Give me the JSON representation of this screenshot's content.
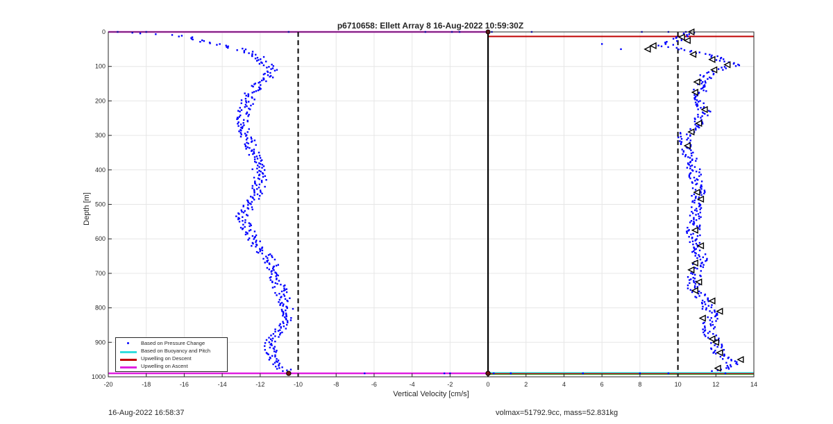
{
  "chart_data": {
    "type": "scatter",
    "title": "p6710658: Ellett Array 8 16-Aug-2022 10:59:30Z",
    "xlabel": "Vertical Velocity [cm/s]",
    "ylabel": "Depth [m]",
    "xlim": [
      -20,
      14
    ],
    "ylim": [
      0,
      1000
    ],
    "y_reversed": true,
    "grid": true,
    "xticks": [
      "-20",
      "-18",
      "-16",
      "-14",
      "-12",
      "-10",
      "-8",
      "-6",
      "-4",
      "-2",
      "0",
      "2",
      "4",
      "6",
      "8",
      "10",
      "12",
      "14"
    ],
    "yticks": [
      "0",
      "100",
      "200",
      "300",
      "400",
      "500",
      "600",
      "700",
      "800",
      "900",
      "1000"
    ],
    "legend": {
      "placement": "bottom-left",
      "entries": [
        {
          "label": "Based on Pressure Change",
          "color": "#0000ff"
        },
        {
          "label": "Based on Buoyancy and Pitch",
          "color": "#33dddd"
        },
        {
          "label": "Upwelling on Descent",
          "color": "#c00000"
        },
        {
          "label": "Upwelling on Ascent",
          "color": "#e020e0"
        }
      ]
    },
    "reference_lines": {
      "dashed_x": [
        -10,
        10
      ],
      "solid_x": [
        0
      ],
      "descent_depths": [
        13,
        990
      ],
      "ascent_depths": [
        0,
        990
      ]
    },
    "series": [
      {
        "name": "Based on Pressure Change",
        "profile_left": [
          {
            "depth": 0,
            "x": -19.5
          },
          {
            "depth": 10,
            "x": -16.2
          },
          {
            "depth": 25,
            "x": -15.2
          },
          {
            "depth": 40,
            "x": -13.8
          },
          {
            "depth": 55,
            "x": -12.8
          },
          {
            "depth": 70,
            "x": -12.2
          },
          {
            "depth": 90,
            "x": -11.8
          },
          {
            "depth": 110,
            "x": -11.3
          },
          {
            "depth": 130,
            "x": -11.6
          },
          {
            "depth": 150,
            "x": -12.1
          },
          {
            "depth": 180,
            "x": -12.5
          },
          {
            "depth": 220,
            "x": -12.8
          },
          {
            "depth": 260,
            "x": -12.9
          },
          {
            "depth": 300,
            "x": -12.7
          },
          {
            "depth": 340,
            "x": -12.4
          },
          {
            "depth": 380,
            "x": -12.2
          },
          {
            "depth": 420,
            "x": -12.0
          },
          {
            "depth": 460,
            "x": -12.1
          },
          {
            "depth": 500,
            "x": -12.5
          },
          {
            "depth": 540,
            "x": -13.0
          },
          {
            "depth": 580,
            "x": -12.6
          },
          {
            "depth": 620,
            "x": -12.2
          },
          {
            "depth": 660,
            "x": -11.5
          },
          {
            "depth": 700,
            "x": -11.2
          },
          {
            "depth": 740,
            "x": -11.0
          },
          {
            "depth": 780,
            "x": -10.7
          },
          {
            "depth": 820,
            "x": -10.5
          },
          {
            "depth": 860,
            "x": -10.9
          },
          {
            "depth": 900,
            "x": -11.4
          },
          {
            "depth": 940,
            "x": -11.5
          },
          {
            "depth": 970,
            "x": -10.9
          },
          {
            "depth": 985,
            "x": -10.6
          }
        ],
        "profile_right": [
          {
            "depth": 0,
            "x": 10.6
          },
          {
            "depth": 20,
            "x": 10.1
          },
          {
            "depth": 40,
            "x": 9.3
          },
          {
            "depth": 60,
            "x": 11.2
          },
          {
            "depth": 80,
            "x": 12.3
          },
          {
            "depth": 95,
            "x": 13.0
          },
          {
            "depth": 120,
            "x": 11.6
          },
          {
            "depth": 150,
            "x": 11.2
          },
          {
            "depth": 190,
            "x": 11.1
          },
          {
            "depth": 230,
            "x": 11.4
          },
          {
            "depth": 270,
            "x": 11.0
          },
          {
            "depth": 300,
            "x": 10.3
          },
          {
            "depth": 340,
            "x": 10.5
          },
          {
            "depth": 380,
            "x": 10.8
          },
          {
            "depth": 420,
            "x": 10.9
          },
          {
            "depth": 460,
            "x": 11.1
          },
          {
            "depth": 500,
            "x": 11.0
          },
          {
            "depth": 540,
            "x": 10.9
          },
          {
            "depth": 580,
            "x": 10.8
          },
          {
            "depth": 620,
            "x": 11.0
          },
          {
            "depth": 660,
            "x": 11.2
          },
          {
            "depth": 700,
            "x": 10.9
          },
          {
            "depth": 740,
            "x": 10.8
          },
          {
            "depth": 780,
            "x": 11.4
          },
          {
            "depth": 820,
            "x": 11.8
          },
          {
            "depth": 860,
            "x": 11.6
          },
          {
            "depth": 900,
            "x": 11.9
          },
          {
            "depth": 940,
            "x": 12.3
          },
          {
            "depth": 965,
            "x": 13.0
          },
          {
            "depth": 985,
            "x": 12.0
          }
        ],
        "surface_outliers": [
          {
            "depth": 0,
            "x": -18
          },
          {
            "depth": 0,
            "x": -10.5
          },
          {
            "depth": 0,
            "x": -3.3
          },
          {
            "depth": 0,
            "x": -1.9
          },
          {
            "depth": 0,
            "x": -1.5
          },
          {
            "depth": 0,
            "x": 0.2
          },
          {
            "depth": 0,
            "x": 2.3
          },
          {
            "depth": 0,
            "x": 8.1
          },
          {
            "depth": 0,
            "x": 9.5
          },
          {
            "depth": 35,
            "x": 6.0
          },
          {
            "depth": 50,
            "x": 7.0
          }
        ],
        "bottom_outliers": [
          {
            "depth": 990,
            "x": -6.5
          },
          {
            "depth": 990,
            "x": -2.3
          },
          {
            "depth": 990,
            "x": -2.0
          },
          {
            "depth": 990,
            "x": 0.3
          },
          {
            "depth": 990,
            "x": 1.2
          },
          {
            "depth": 990,
            "x": 5.0
          },
          {
            "depth": 990,
            "x": 8.0
          },
          {
            "depth": 990,
            "x": 9.5
          },
          {
            "depth": 990,
            "x": 12.5
          }
        ]
      },
      {
        "name": "Based on Buoyancy and Pitch",
        "triangles_right": [
          {
            "depth": 0,
            "x": 10.7
          },
          {
            "depth": 15,
            "x": 10.2
          },
          {
            "depth": 25,
            "x": 10.5
          },
          {
            "depth": 40,
            "x": 8.7
          },
          {
            "depth": 50,
            "x": 8.4
          },
          {
            "depth": 65,
            "x": 10.8
          },
          {
            "depth": 80,
            "x": 11.8
          },
          {
            "depth": 95,
            "x": 12.6
          },
          {
            "depth": 110,
            "x": 11.9
          },
          {
            "depth": 145,
            "x": 11.0
          },
          {
            "depth": 175,
            "x": 10.9
          },
          {
            "depth": 225,
            "x": 11.4
          },
          {
            "depth": 265,
            "x": 11.1
          },
          {
            "depth": 290,
            "x": 10.7
          },
          {
            "depth": 330,
            "x": 10.5
          },
          {
            "depth": 465,
            "x": 11.0
          },
          {
            "depth": 485,
            "x": 11.2
          },
          {
            "depth": 575,
            "x": 10.9
          },
          {
            "depth": 620,
            "x": 11.2
          },
          {
            "depth": 670,
            "x": 10.9
          },
          {
            "depth": 690,
            "x": 10.7
          },
          {
            "depth": 725,
            "x": 11.1
          },
          {
            "depth": 750,
            "x": 10.9
          },
          {
            "depth": 780,
            "x": 11.8
          },
          {
            "depth": 810,
            "x": 12.2
          },
          {
            "depth": 830,
            "x": 11.3
          },
          {
            "depth": 890,
            "x": 11.8
          },
          {
            "depth": 900,
            "x": 12.0
          },
          {
            "depth": 930,
            "x": 12.2
          },
          {
            "depth": 950,
            "x": 13.3
          },
          {
            "depth": 975,
            "x": 12.1
          }
        ],
        "bottom_markers": [
          {
            "depth": 990,
            "x": -10.5
          },
          {
            "depth": 990,
            "x": 0
          }
        ]
      }
    ]
  },
  "footer": {
    "left": "16-Aug-2022 16:58:37",
    "right": "volmax=51792.9cc, mass=52.831kg"
  }
}
